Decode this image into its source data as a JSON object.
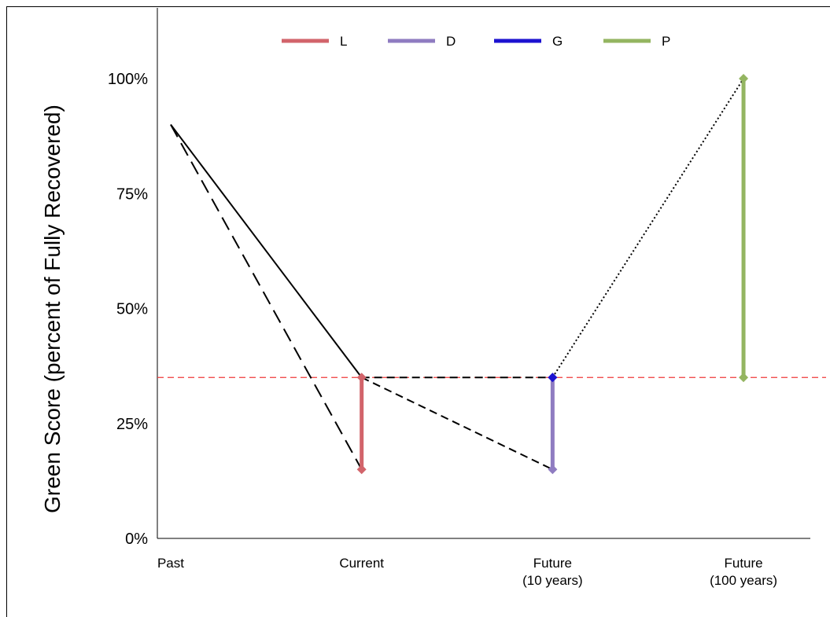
{
  "chart_data": {
    "type": "line",
    "ylabel": "Green Score (percent of Fully Recovered)",
    "xlabel": "",
    "ylim": [
      0,
      100
    ],
    "yticks": [
      {
        "value": 0,
        "label": "0%"
      },
      {
        "value": 25,
        "label": "25%"
      },
      {
        "value": 50,
        "label": "50%"
      },
      {
        "value": 75,
        "label": "75%"
      },
      {
        "value": 100,
        "label": "100%"
      }
    ],
    "categories": [
      {
        "x": 0,
        "lines": [
          "Past"
        ]
      },
      {
        "x": 1,
        "lines": [
          "Current"
        ]
      },
      {
        "x": 2,
        "lines": [
          "Future",
          "(10 years)"
        ]
      },
      {
        "x": 3,
        "lines": [
          "Future",
          "(100 years)"
        ]
      }
    ],
    "xlim": [
      -0.07,
      3.35
    ],
    "legend_position": "top-center",
    "legend": [
      {
        "label": "L",
        "color": "#d2646b"
      },
      {
        "label": "D",
        "color": "#8f7cc1"
      },
      {
        "label": "G",
        "color": "#1c12d0"
      },
      {
        "label": "P",
        "color": "#94b561"
      }
    ],
    "reference_line": {
      "y": 35,
      "color": "#ef3a3a",
      "style": "dashed"
    },
    "paths": [
      {
        "style": "solid",
        "points": [
          [
            0,
            90
          ],
          [
            1,
            35
          ]
        ]
      },
      {
        "style": "long-dash",
        "points": [
          [
            0,
            90
          ],
          [
            1,
            15
          ]
        ]
      },
      {
        "style": "dashed",
        "points": [
          [
            1,
            35
          ],
          [
            2,
            35
          ]
        ]
      },
      {
        "style": "dashed",
        "points": [
          [
            1,
            35
          ],
          [
            2,
            15
          ]
        ]
      },
      {
        "style": "dotted",
        "points": [
          [
            2,
            35
          ],
          [
            3,
            100
          ]
        ]
      }
    ],
    "ranges": [
      {
        "name": "L",
        "x": 1,
        "low": 15,
        "high": 35,
        "color": "#d2646b"
      },
      {
        "name": "D",
        "x": 2,
        "low": 15,
        "high": 35,
        "color": "#8f7cc1"
      },
      {
        "name": "G",
        "x": 2,
        "low": 35,
        "high": 35,
        "color": "#1c12d0"
      },
      {
        "name": "P",
        "x": 3,
        "low": 35,
        "high": 100,
        "color": "#94b561"
      }
    ]
  }
}
